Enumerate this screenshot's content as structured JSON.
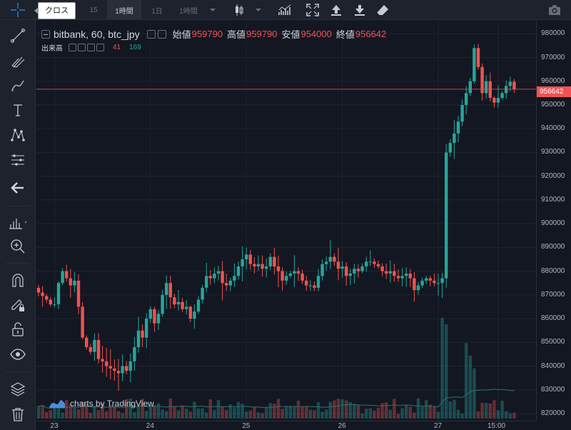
{
  "toolbar": {
    "crosshair_tooltip": "クロス",
    "intervals": [
      {
        "label": "15",
        "active": false
      },
      {
        "label": "1時間",
        "active": true
      },
      {
        "label": "1日",
        "active": false
      },
      {
        "label": "1時間",
        "active": false
      }
    ]
  },
  "legend": {
    "symbol": "bitbank, 60, btc_jpy",
    "open_label": "始値",
    "open": "959790",
    "high_label": "高値",
    "high": "959790",
    "low_label": "安値",
    "low": "954000",
    "close_label": "終値",
    "close": "956642",
    "volume_label": "出来高",
    "volume_value": "41",
    "volume_ma": "169"
  },
  "last_price_label": "956642",
  "watermark": "charts by TradingView",
  "colors": {
    "up": "#26a69a",
    "down": "#ef5350",
    "background": "#131722",
    "panel": "#1e222d"
  },
  "chart_data": {
    "type": "candlestick",
    "symbol": "bitbank, 60, btc_jpy",
    "y_ticks": [
      980000,
      970000,
      960000,
      950000,
      940000,
      930000,
      920000,
      910000,
      900000,
      890000,
      880000,
      870000,
      860000,
      850000,
      840000,
      830000,
      820000
    ],
    "ylim": [
      817000,
      985500
    ],
    "x_ticks": [
      {
        "label": "23",
        "t": 4
      },
      {
        "label": "24",
        "t": 28
      },
      {
        "label": "25",
        "t": 52
      },
      {
        "label": "26",
        "t": 76
      },
      {
        "label": "27",
        "t": 100
      },
      {
        "label": "15:00",
        "t": 115
      }
    ],
    "last_price": 956642,
    "waypoints": [
      [
        0,
        871000
      ],
      [
        2,
        868000
      ],
      [
        3,
        866000
      ],
      [
        4,
        866000
      ],
      [
        5,
        875000
      ],
      [
        6,
        880000
      ],
      [
        7,
        877000
      ],
      [
        8,
        874000
      ],
      [
        9,
        876000
      ],
      [
        10,
        865000
      ],
      [
        11,
        852000
      ],
      [
        12,
        848000
      ],
      [
        13,
        846000
      ],
      [
        14,
        851000
      ],
      [
        15,
        843000
      ],
      [
        16,
        842000
      ],
      [
        17,
        840000
      ],
      [
        18,
        839000
      ],
      [
        19,
        838000
      ],
      [
        20,
        837000
      ],
      [
        21,
        840000
      ],
      [
        22,
        838000
      ],
      [
        23,
        842000
      ],
      [
        24,
        848000
      ],
      [
        25,
        855000
      ],
      [
        26,
        852000
      ],
      [
        27,
        860000
      ],
      [
        28,
        864000
      ],
      [
        29,
        858000
      ],
      [
        30,
        862000
      ],
      [
        31,
        870000
      ],
      [
        32,
        875000
      ],
      [
        33,
        869000
      ],
      [
        34,
        866000
      ],
      [
        35,
        867000
      ],
      [
        36,
        864000
      ],
      [
        37,
        865000
      ],
      [
        38,
        860000
      ],
      [
        39,
        863000
      ],
      [
        40,
        868000
      ],
      [
        41,
        873000
      ],
      [
        42,
        878000
      ],
      [
        43,
        877000
      ],
      [
        44,
        879000
      ],
      [
        45,
        880000
      ],
      [
        46,
        875000
      ],
      [
        47,
        874000
      ],
      [
        48,
        876000
      ],
      [
        49,
        878000
      ],
      [
        50,
        882000
      ],
      [
        51,
        885000
      ],
      [
        52,
        887000
      ],
      [
        53,
        883000
      ],
      [
        54,
        882000
      ],
      [
        55,
        883000
      ],
      [
        56,
        881000
      ],
      [
        57,
        882000
      ],
      [
        58,
        886000
      ],
      [
        59,
        882000
      ],
      [
        60,
        880000
      ],
      [
        61,
        876000
      ],
      [
        62,
        878000
      ],
      [
        63,
        879000
      ],
      [
        64,
        880000
      ],
      [
        65,
        879000
      ],
      [
        66,
        876000
      ],
      [
        67,
        874000
      ],
      [
        68,
        874000
      ],
      [
        69,
        873000
      ],
      [
        70,
        878000
      ],
      [
        71,
        883000
      ],
      [
        72,
        884000
      ],
      [
        73,
        886000
      ],
      [
        74,
        884000
      ],
      [
        75,
        881000
      ],
      [
        76,
        882000
      ],
      [
        77,
        878000
      ],
      [
        78,
        879000
      ],
      [
        79,
        881000
      ],
      [
        80,
        880000
      ],
      [
        81,
        882000
      ],
      [
        82,
        884000
      ],
      [
        83,
        884000
      ],
      [
        84,
        883000
      ],
      [
        85,
        882000
      ],
      [
        86,
        880000
      ],
      [
        87,
        879000
      ],
      [
        88,
        880000
      ],
      [
        89,
        878000
      ],
      [
        90,
        877000
      ],
      [
        91,
        878000
      ],
      [
        92,
        879000
      ],
      [
        93,
        877000
      ],
      [
        94,
        872000
      ],
      [
        95,
        874000
      ],
      [
        96,
        876000
      ],
      [
        97,
        877000
      ],
      [
        98,
        876000
      ],
      [
        99,
        875000
      ],
      [
        100,
        875000
      ],
      [
        101,
        877000
      ],
      [
        102,
        930000
      ],
      [
        103,
        934000
      ],
      [
        104,
        938000
      ],
      [
        105,
        943000
      ],
      [
        106,
        950000
      ],
      [
        107,
        955000
      ],
      [
        108,
        960000
      ],
      [
        109,
        974000
      ],
      [
        110,
        966000
      ],
      [
        111,
        955000
      ],
      [
        112,
        960000
      ],
      [
        113,
        953000
      ],
      [
        114,
        951000
      ],
      [
        115,
        953000
      ],
      [
        116,
        955000
      ],
      [
        117,
        958000
      ],
      [
        118,
        959790
      ],
      [
        119,
        956642
      ]
    ],
    "volume_spikes": [
      [
        101,
        3.2
      ],
      [
        102,
        3.0
      ],
      [
        107,
        2.4
      ],
      [
        108,
        2.0
      ],
      [
        109,
        1.6
      ]
    ]
  }
}
